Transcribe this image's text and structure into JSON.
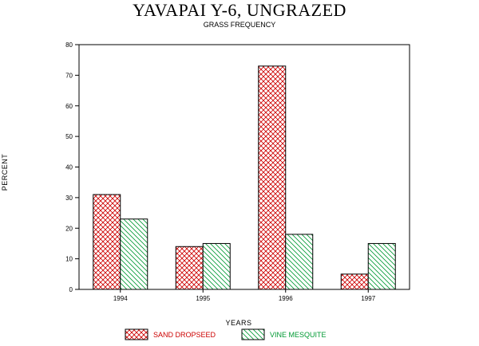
{
  "chart_data": {
    "type": "bar",
    "title": "YAVAPAI Y-6, UNGRAZED",
    "subtitle": "GRASS FREQUENCY",
    "xlabel": "YEARS",
    "ylabel": "PERCENT",
    "categories": [
      "1994",
      "1995",
      "1996",
      "1997"
    ],
    "ylim": [
      0,
      80
    ],
    "yticks": [
      0,
      10,
      20,
      30,
      40,
      50,
      60,
      70,
      80
    ],
    "grid": false,
    "legend_position": "bottom",
    "series": [
      {
        "name": "SAND DROPSEED",
        "values": [
          31,
          14,
          73,
          5
        ],
        "color": "#cc0000",
        "pattern": "crosshatch"
      },
      {
        "name": "VINE MESQUITE",
        "values": [
          23,
          15,
          18,
          15
        ],
        "color": "#009933",
        "pattern": "diagonal"
      }
    ]
  }
}
